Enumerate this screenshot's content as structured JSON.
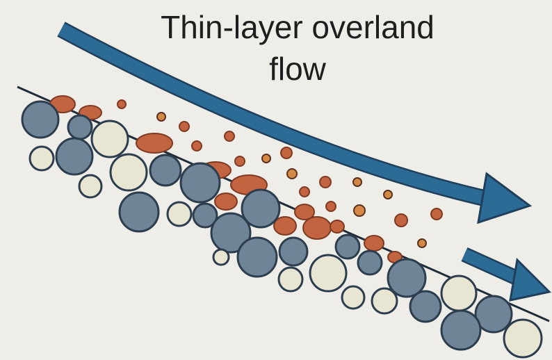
{
  "title": {
    "lines": [
      "Thin-layer overland",
      "flow"
    ]
  }
}
